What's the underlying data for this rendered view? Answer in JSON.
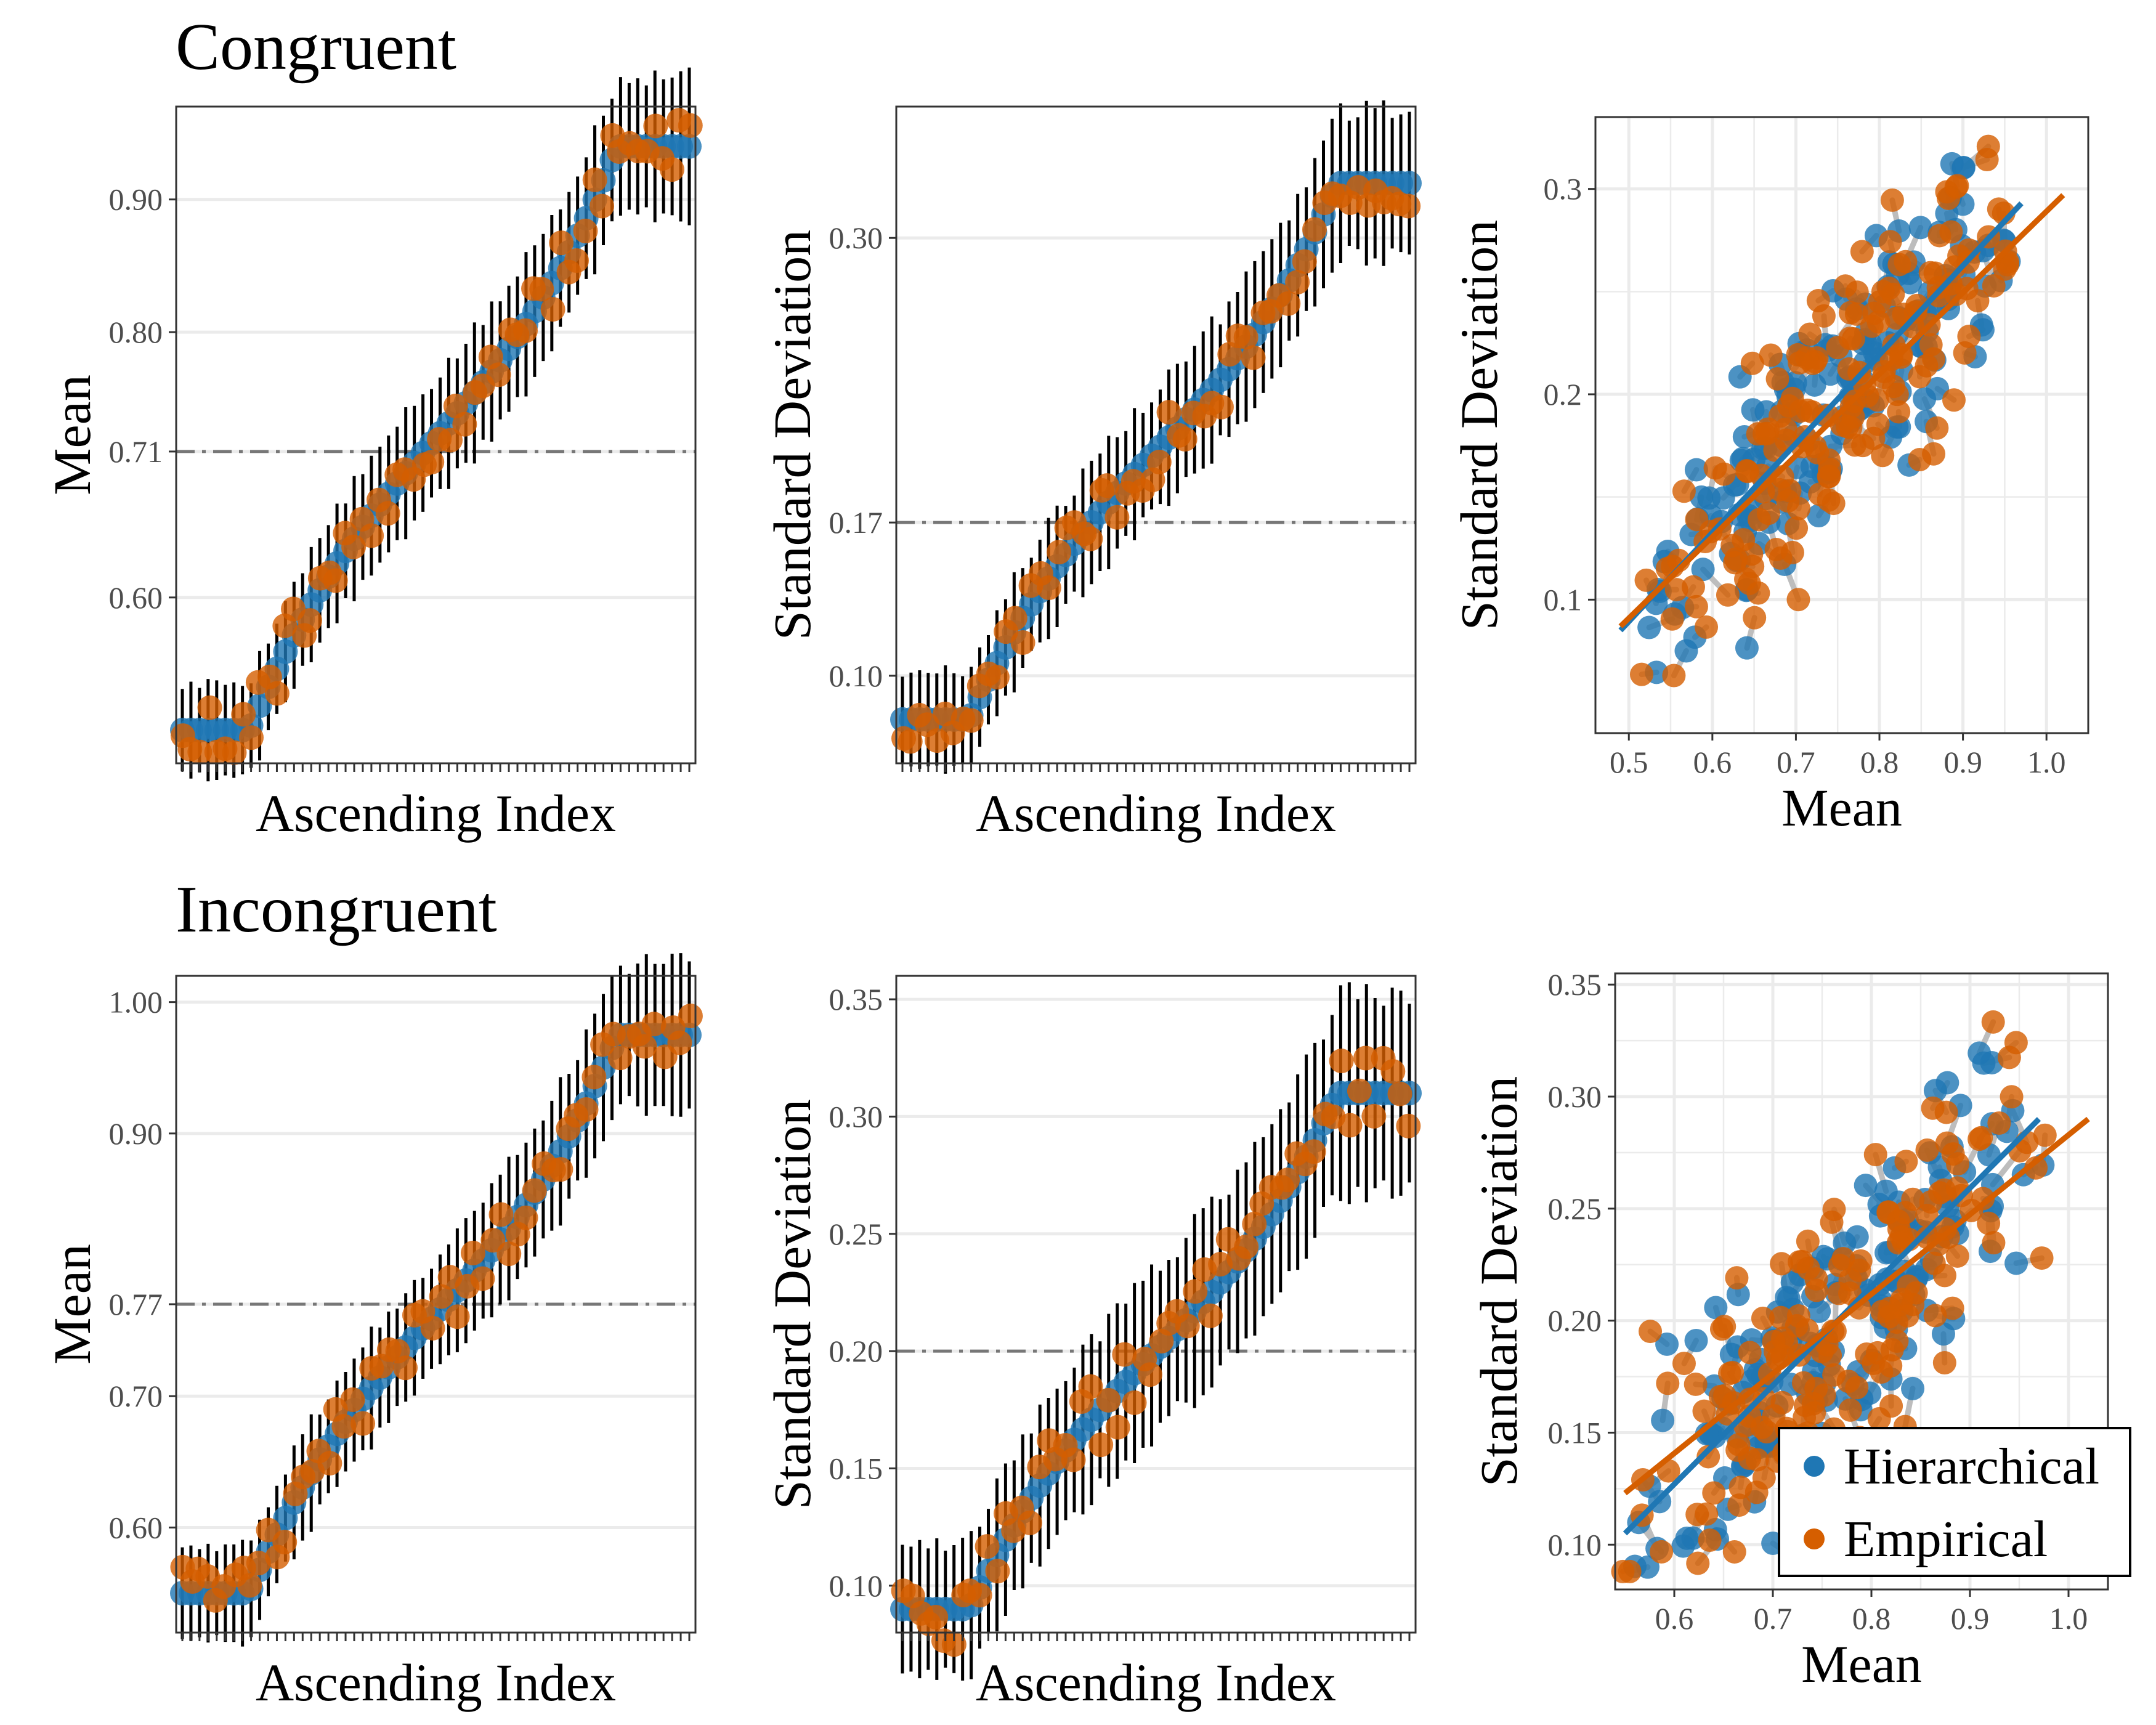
{
  "sections": [
    {
      "title": "Congruent",
      "panels": [
        {
          "type": "ascending",
          "ylabel": "Mean",
          "xlabel": "Ascending Index",
          "ylim": [
            0.475,
            0.97
          ],
          "yticks": [
            0.6,
            0.71,
            0.8,
            0.9
          ],
          "ytick_labels": [
            "0.60",
            "0.71",
            "0.80",
            "0.90"
          ],
          "hline": 0.71,
          "n": 60,
          "y_start": 0.5,
          "y_end": 0.94,
          "ci": 0.045
        },
        {
          "type": "ascending",
          "ylabel": "Standard Deviation",
          "xlabel": "Ascending Index",
          "ylim": [
            0.06,
            0.36
          ],
          "yticks": [
            0.1,
            0.17,
            0.3
          ],
          "ytick_labels": [
            "0.10",
            "0.17",
            "0.30"
          ],
          "hline": 0.17,
          "n": 60,
          "y_start": 0.08,
          "y_end": 0.325,
          "ci": 0.028
        },
        {
          "type": "scatter",
          "ylabel": "Standard Deviation",
          "xlabel": "Mean",
          "xlim": [
            0.46,
            1.05
          ],
          "ylim": [
            0.035,
            0.335
          ],
          "xticks": [
            0.5,
            0.6,
            0.7,
            0.8,
            0.9,
            1.0
          ],
          "xtick_labels": [
            "0.5",
            "0.6",
            "0.7",
            "0.8",
            "0.9",
            "1.0"
          ],
          "yticks": [
            0.1,
            0.2,
            0.3
          ],
          "ytick_labels": [
            "0.1",
            "0.2",
            "0.3"
          ],
          "fit_hier": [
            [
              0.49,
              0.085
            ],
            [
              0.97,
              0.293
            ]
          ],
          "fit_emp": [
            [
              0.49,
              0.087
            ],
            [
              1.02,
              0.297
            ]
          ],
          "seed": 11
        }
      ]
    },
    {
      "title": "Incongruent",
      "panels": [
        {
          "type": "ascending",
          "ylabel": "Mean",
          "xlabel": "Ascending Index",
          "ylim": [
            0.52,
            1.02
          ],
          "yticks": [
            0.6,
            0.7,
            0.77,
            0.9,
            1.0
          ],
          "ytick_labels": [
            "0.60",
            "0.70",
            "0.77",
            "0.90",
            "1.00"
          ],
          "hline": 0.77,
          "n": 60,
          "y_start": 0.55,
          "y_end": 0.975,
          "ci": 0.045
        },
        {
          "type": "ascending",
          "ylabel": "Standard Deviation",
          "xlabel": "Ascending Index",
          "ylim": [
            0.08,
            0.36
          ],
          "yticks": [
            0.1,
            0.15,
            0.2,
            0.25,
            0.3,
            0.35
          ],
          "ytick_labels": [
            "0.10",
            "0.15",
            "0.20",
            "0.25",
            "0.30",
            "0.35"
          ],
          "hline": 0.2,
          "n": 60,
          "y_start": 0.09,
          "y_end": 0.31,
          "ci": 0.035
        },
        {
          "type": "scatter",
          "ylabel": "Standard Deviation",
          "xlabel": "Mean",
          "xlim": [
            0.54,
            1.04
          ],
          "ylim": [
            0.08,
            0.355
          ],
          "xticks": [
            0.6,
            0.7,
            0.8,
            0.9,
            1.0
          ],
          "xtick_labels": [
            "0.6",
            "0.7",
            "0.8",
            "0.9",
            "1.0"
          ],
          "yticks": [
            0.1,
            0.15,
            0.2,
            0.25,
            0.3,
            0.35
          ],
          "ytick_labels": [
            "0.10",
            "0.15",
            "0.20",
            "0.25",
            "0.30",
            "0.35"
          ],
          "fit_hier": [
            [
              0.55,
              0.105
            ],
            [
              0.97,
              0.29
            ]
          ],
          "fit_emp": [
            [
              0.55,
              0.123
            ],
            [
              1.02,
              0.29
            ]
          ],
          "seed": 29
        }
      ]
    }
  ],
  "legend": [
    {
      "label": "Hierarchical",
      "color": "#1f77b4"
    },
    {
      "label": "Empirical",
      "color": "#d55e00"
    }
  ],
  "colors": {
    "hierarchical": "#1f77b4",
    "empirical": "#d55e00",
    "error_bar": "#000000",
    "reference_line": "#777777",
    "grid": "#ebebeb",
    "pair_line": "#bdbdbd"
  },
  "chart_data": [
    {
      "type": "scatter",
      "title": "Congruent",
      "panel": "mean-ascending",
      "xlabel": "Ascending Index",
      "ylabel": "Mean",
      "n_points": 60,
      "reference_line": 0.71,
      "y_range_of_points": [
        0.5,
        0.94
      ],
      "series": [
        {
          "name": "Hierarchical"
        },
        {
          "name": "Empirical"
        }
      ]
    },
    {
      "type": "scatter",
      "title": "Congruent",
      "panel": "sd-ascending",
      "xlabel": "Ascending Index",
      "ylabel": "Standard Deviation",
      "n_points": 60,
      "reference_line": 0.17,
      "y_range_of_points": [
        0.08,
        0.325
      ],
      "series": [
        {
          "name": "Hierarchical"
        },
        {
          "name": "Empirical"
        }
      ]
    },
    {
      "type": "scatter",
      "title": "Congruent",
      "panel": "mean-vs-sd",
      "xlabel": "Mean",
      "ylabel": "Standard Deviation",
      "series": [
        {
          "name": "Hierarchical",
          "fit": [
            [
              0.49,
              0.085
            ],
            [
              0.97,
              0.293
            ]
          ]
        },
        {
          "name": "Empirical",
          "fit": [
            [
              0.49,
              0.087
            ],
            [
              1.02,
              0.297
            ]
          ]
        }
      ]
    },
    {
      "type": "scatter",
      "title": "Incongruent",
      "panel": "mean-ascending",
      "xlabel": "Ascending Index",
      "ylabel": "Mean",
      "n_points": 60,
      "reference_line": 0.77,
      "y_range_of_points": [
        0.55,
        0.975
      ],
      "series": [
        {
          "name": "Hierarchical"
        },
        {
          "name": "Empirical"
        }
      ]
    },
    {
      "type": "scatter",
      "title": "Incongruent",
      "panel": "sd-ascending",
      "xlabel": "Ascending Index",
      "ylabel": "Standard Deviation",
      "n_points": 60,
      "reference_line": 0.2,
      "y_range_of_points": [
        0.09,
        0.31
      ],
      "series": [
        {
          "name": "Hierarchical"
        },
        {
          "name": "Empirical"
        }
      ]
    },
    {
      "type": "scatter",
      "title": "Incongruent",
      "panel": "mean-vs-sd",
      "xlabel": "Mean",
      "ylabel": "Standard Deviation",
      "series": [
        {
          "name": "Hierarchical",
          "fit": [
            [
              0.55,
              0.105
            ],
            [
              0.97,
              0.29
            ]
          ]
        },
        {
          "name": "Empirical",
          "fit": [
            [
              0.55,
              0.123
            ],
            [
              1.02,
              0.29
            ]
          ]
        }
      ]
    }
  ]
}
